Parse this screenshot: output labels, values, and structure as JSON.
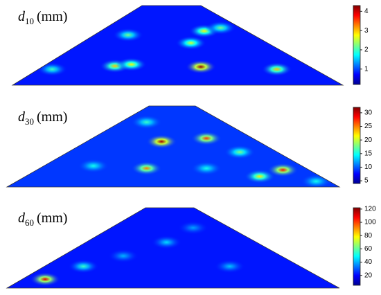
{
  "chart_data": [
    {
      "type": "heatmap",
      "title": {
        "variable": "d",
        "subscript": "10",
        "unit": "(mm)"
      },
      "clim": [
        0.2,
        4.3
      ],
      "yticks": [
        1,
        2,
        3,
        4
      ],
      "base_value": 0.8,
      "x": [
        0.57,
        0.31,
        0.36,
        0.8,
        0.58,
        0.54,
        0.35,
        0.63,
        0.12
      ],
      "y": [
        0.23,
        0.24,
        0.26,
        0.2,
        0.68,
        0.53,
        0.63,
        0.72,
        0.2
      ],
      "values": [
        4.2,
        3.0,
        2.8,
        3.0,
        2.8,
        2.6,
        2.2,
        2.2,
        2.0
      ]
    },
    {
      "type": "heatmap",
      "title": {
        "variable": "d",
        "subscript": "30",
        "unit": "(mm)"
      },
      "clim": [
        4,
        32
      ],
      "yticks": [
        5,
        10,
        15,
        20,
        25,
        30
      ],
      "base_value": 9,
      "x": [
        0.465,
        0.6,
        0.83,
        0.42,
        0.76,
        0.7,
        0.26,
        0.93,
        0.6,
        0.42
      ],
      "y": [
        0.56,
        0.6,
        0.21,
        0.23,
        0.13,
        0.43,
        0.26,
        0.07,
        0.23,
        0.8
      ],
      "values": [
        31,
        27,
        28,
        25,
        22,
        18,
        15,
        15,
        15,
        16
      ]
    },
    {
      "type": "heatmap",
      "title": {
        "variable": "d",
        "subscript": "60",
        "unit": "(mm)"
      },
      "clim": [
        5,
        122
      ],
      "yticks": [
        20,
        40,
        60,
        80,
        100,
        120
      ],
      "base_value": 22,
      "x": [
        0.115,
        0.23,
        0.48,
        0.67,
        0.35,
        0.56
      ],
      "y": [
        0.11,
        0.27,
        0.57,
        0.27,
        0.4,
        0.75
      ],
      "values": [
        110,
        55,
        45,
        42,
        40,
        38
      ]
    }
  ]
}
